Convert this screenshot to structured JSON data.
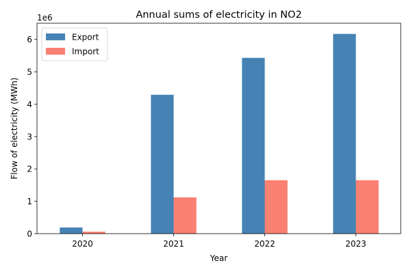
{
  "chart_data": {
    "type": "bar",
    "title": "Annual sums of electricity in NO2",
    "xlabel": "Year",
    "ylabel": "Flow of electricity (MWh)",
    "y_scale_label": "1e6",
    "categories": [
      "2020",
      "2021",
      "2022",
      "2023"
    ],
    "series": [
      {
        "name": "Export",
        "color": "#4682b4",
        "values": [
          190000,
          4290000,
          5430000,
          6170000
        ]
      },
      {
        "name": "Import",
        "color": "#fa8072",
        "values": [
          60000,
          1120000,
          1650000,
          1650000
        ]
      }
    ],
    "ylim": [
      0,
      6500000
    ],
    "yticks": [
      0,
      1000000,
      2000000,
      3000000,
      4000000,
      5000000,
      6000000
    ],
    "ytick_labels": [
      "0",
      "1",
      "2",
      "3",
      "4",
      "5",
      "6"
    ],
    "grid": false,
    "legend_position": "top-left"
  }
}
